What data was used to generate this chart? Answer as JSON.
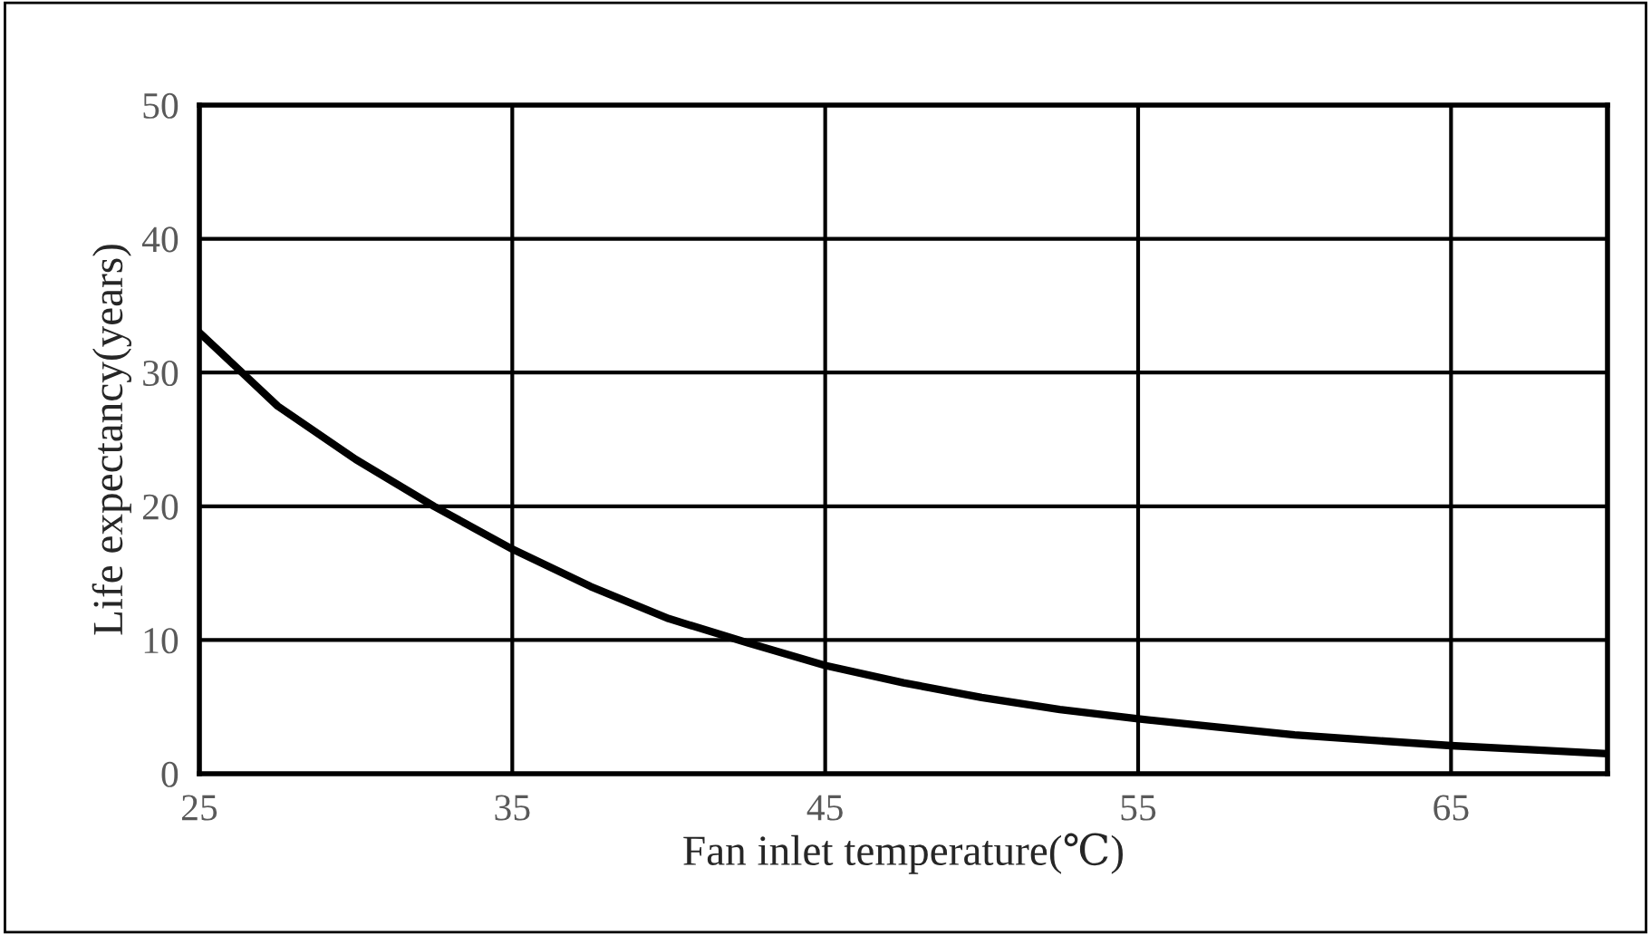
{
  "chart_data": {
    "type": "line",
    "xlabel": "Fan inlet temperature(℃)",
    "ylabel": "Life expectancy(years)",
    "x": [
      25,
      27.5,
      30,
      32.5,
      35,
      37.5,
      40,
      42.5,
      45,
      47.5,
      50,
      52.5,
      55,
      57.5,
      60,
      62.5,
      65,
      67.5,
      70
    ],
    "series": [
      {
        "color": "#000000",
        "values": [
          33,
          27.5,
          23.5,
          20,
          16.8,
          14.0,
          11.6,
          9.8,
          8.1,
          6.8,
          5.7,
          4.8,
          4.1,
          3.5,
          2.9,
          2.5,
          2.1,
          1.8,
          1.5
        ]
      }
    ],
    "xlim": [
      25,
      70
    ],
    "xticks": [
      25,
      35,
      45,
      55,
      65
    ],
    "ylim": [
      0,
      50
    ],
    "yticks": [
      0,
      10,
      20,
      30,
      40,
      50
    ],
    "grid": true,
    "marker": "none",
    "line_style": "solid"
  }
}
